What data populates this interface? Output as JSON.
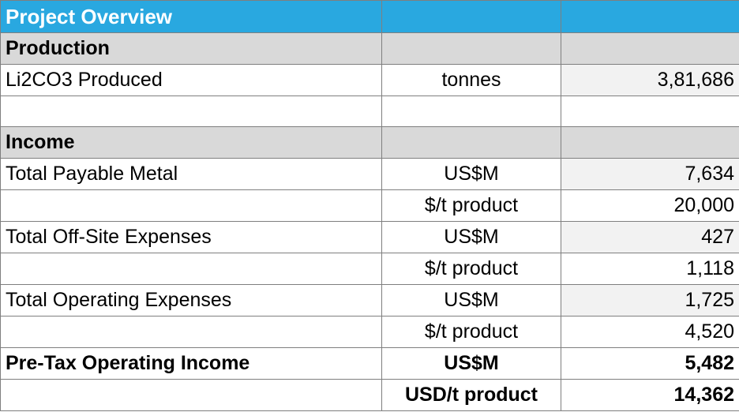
{
  "title": "Project Overview",
  "production": {
    "header": "Production",
    "rows": [
      {
        "label": "Li2CO3 Produced",
        "unit": "tonnes",
        "value": "3,81,686"
      }
    ]
  },
  "income": {
    "header": "Income",
    "rows": [
      {
        "label": "Total Payable Metal",
        "unit": "US$M",
        "value": "7,634"
      },
      {
        "label": "",
        "unit": "$/t product",
        "value": "20,000"
      },
      {
        "label": "Total Off-Site Expenses",
        "unit": "US$M",
        "value": "427"
      },
      {
        "label": "",
        "unit": "$/t product",
        "value": "1,118"
      },
      {
        "label": "Total Operating Expenses",
        "unit": "US$M",
        "value": "1,725"
      },
      {
        "label": "",
        "unit": "$/t product",
        "value": "4,520"
      },
      {
        "label": "Pre-Tax Operating Income",
        "unit": "US$M",
        "value": "5,482"
      },
      {
        "label": "",
        "unit": "USD/t product",
        "value": "14,362"
      }
    ]
  }
}
